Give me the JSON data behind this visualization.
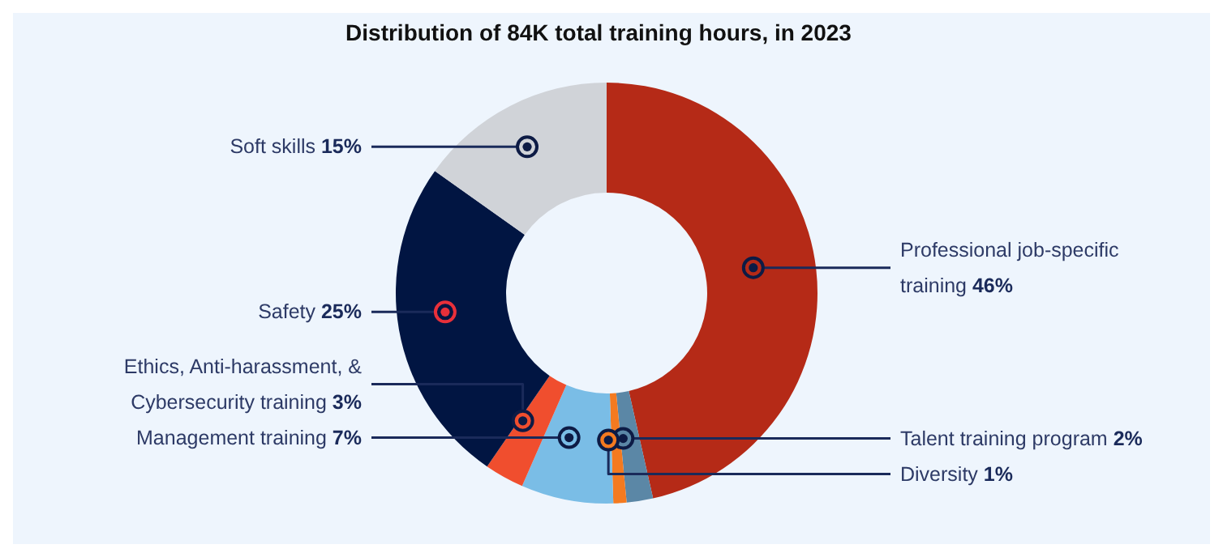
{
  "chart_data": {
    "type": "donut",
    "title": "Distribution of 84K total training hours, in 2023",
    "categories": [
      "Professional job-specific training",
      "Talent training program",
      "Diversity",
      "Management training",
      "Ethics, Anti-harassment, & Cybersecurity training",
      "Safety",
      "Soft skills"
    ],
    "values": [
      46,
      2,
      1,
      7,
      3,
      25,
      15
    ],
    "colors": [
      "#b52a17",
      "#5b87a6",
      "#f47a20",
      "#7abde6",
      "#f04e2e",
      "#011542",
      "#d0d3d8"
    ],
    "value_labels": [
      "46%",
      "2%",
      "1%",
      "7%",
      "3%",
      "25%",
      "15%"
    ]
  }
}
